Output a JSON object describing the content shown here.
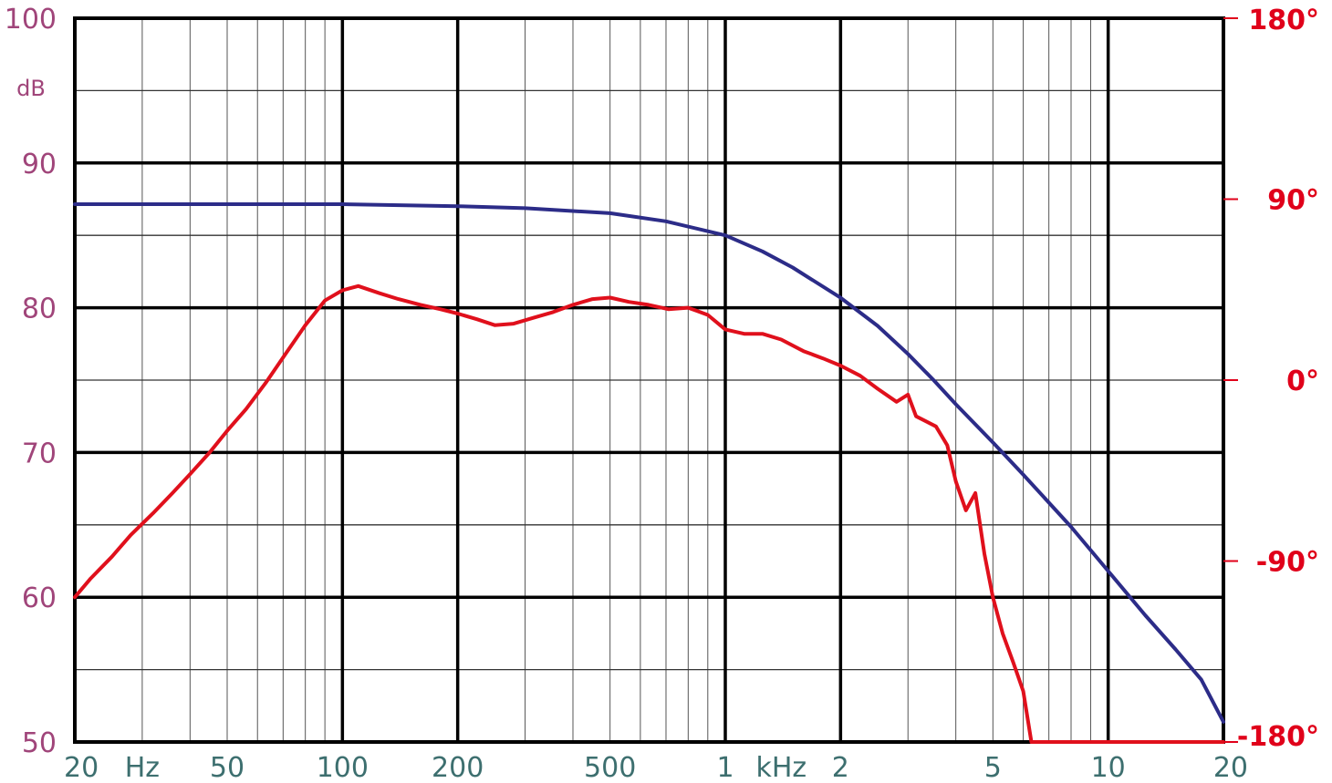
{
  "chart_data": {
    "type": "line",
    "x_scale": "log",
    "x_range_hz": [
      20,
      20000
    ],
    "grid": true,
    "left_axis": {
      "range": [
        50,
        100
      ],
      "ticks": [
        {
          "value": 100,
          "label": "100"
        },
        {
          "value": 90,
          "label": "90"
        },
        {
          "value": 80,
          "label": "80"
        },
        {
          "value": 70,
          "label": "70"
        },
        {
          "value": 60,
          "label": "60"
        },
        {
          "value": 50,
          "label": "50"
        }
      ],
      "unit_label": "dB"
    },
    "right_axis": {
      "range": [
        -180,
        180
      ],
      "ticks": [
        {
          "value": 180,
          "label": "180°"
        },
        {
          "value": 90,
          "label": "90°"
        },
        {
          "value": 0,
          "label": "0°"
        },
        {
          "value": -90,
          "label": "-90°"
        },
        {
          "value": -180,
          "label": "-180°"
        }
      ]
    },
    "x_tick_labels": [
      {
        "freq": 20,
        "label": "20"
      },
      {
        "freq": 30,
        "label": "Hz"
      },
      {
        "freq": 50,
        "label": "50"
      },
      {
        "freq": 100,
        "label": "100"
      },
      {
        "freq": 200,
        "label": "200"
      },
      {
        "freq": 500,
        "label": "500"
      },
      {
        "freq": 1000,
        "label": "1"
      },
      {
        "freq": 1400,
        "label": "kHz"
      },
      {
        "freq": 2000,
        "label": "2"
      },
      {
        "freq": 5000,
        "label": "5"
      },
      {
        "freq": 10000,
        "label": "10"
      },
      {
        "freq": 20000,
        "label": "20"
      }
    ],
    "series": [
      {
        "color": "#e0101c",
        "axis": "left",
        "x": [
          20,
          22,
          25,
          28,
          32,
          36,
          40,
          45,
          50,
          56,
          63,
          71,
          80,
          90,
          100,
          110,
          125,
          140,
          160,
          180,
          200,
          225,
          250,
          280,
          315,
          355,
          400,
          450,
          500,
          560,
          630,
          710,
          800,
          900,
          1000,
          1120,
          1250,
          1400,
          1600,
          1800,
          2000,
          2250,
          2500,
          2800,
          3000,
          3150,
          3550,
          3800,
          4000,
          4250,
          4500,
          4750,
          5000,
          5300,
          5650,
          6000,
          6300,
          8000,
          10000,
          12500,
          16000,
          20000
        ],
        "y": [
          60.0,
          61.3,
          62.8,
          64.3,
          65.8,
          67.2,
          68.5,
          70.0,
          71.5,
          73.0,
          74.8,
          76.8,
          78.8,
          80.5,
          81.2,
          81.5,
          81.0,
          80.6,
          80.2,
          79.9,
          79.6,
          79.2,
          78.8,
          78.9,
          79.3,
          79.7,
          80.2,
          80.6,
          80.7,
          80.4,
          80.2,
          79.9,
          80.0,
          79.5,
          78.5,
          78.2,
          78.2,
          77.8,
          77.0,
          76.5,
          76.0,
          75.3,
          74.4,
          73.5,
          74.0,
          72.5,
          71.8,
          70.5,
          68.0,
          66.0,
          67.2,
          63.0,
          60.0,
          57.5,
          55.5,
          53.5,
          50.0,
          50.0,
          50.0,
          50.0,
          50.0,
          50.0
        ]
      },
      {
        "color": "#2c2c88",
        "axis": "right",
        "x": [
          20,
          50,
          100,
          200,
          300,
          500,
          700,
          1000,
          1250,
          1500,
          2000,
          2500,
          3000,
          3500,
          4000,
          5000,
          6000,
          8000,
          10000,
          12500,
          15000,
          17500,
          20000
        ],
        "y": [
          87.5,
          87.5,
          87.5,
          86.5,
          85.5,
          83,
          79,
          72,
          64,
          56,
          41,
          27,
          13,
          0,
          -12,
          -31,
          -47,
          -73,
          -95,
          -117,
          -134,
          -149,
          -170
        ]
      }
    ]
  }
}
